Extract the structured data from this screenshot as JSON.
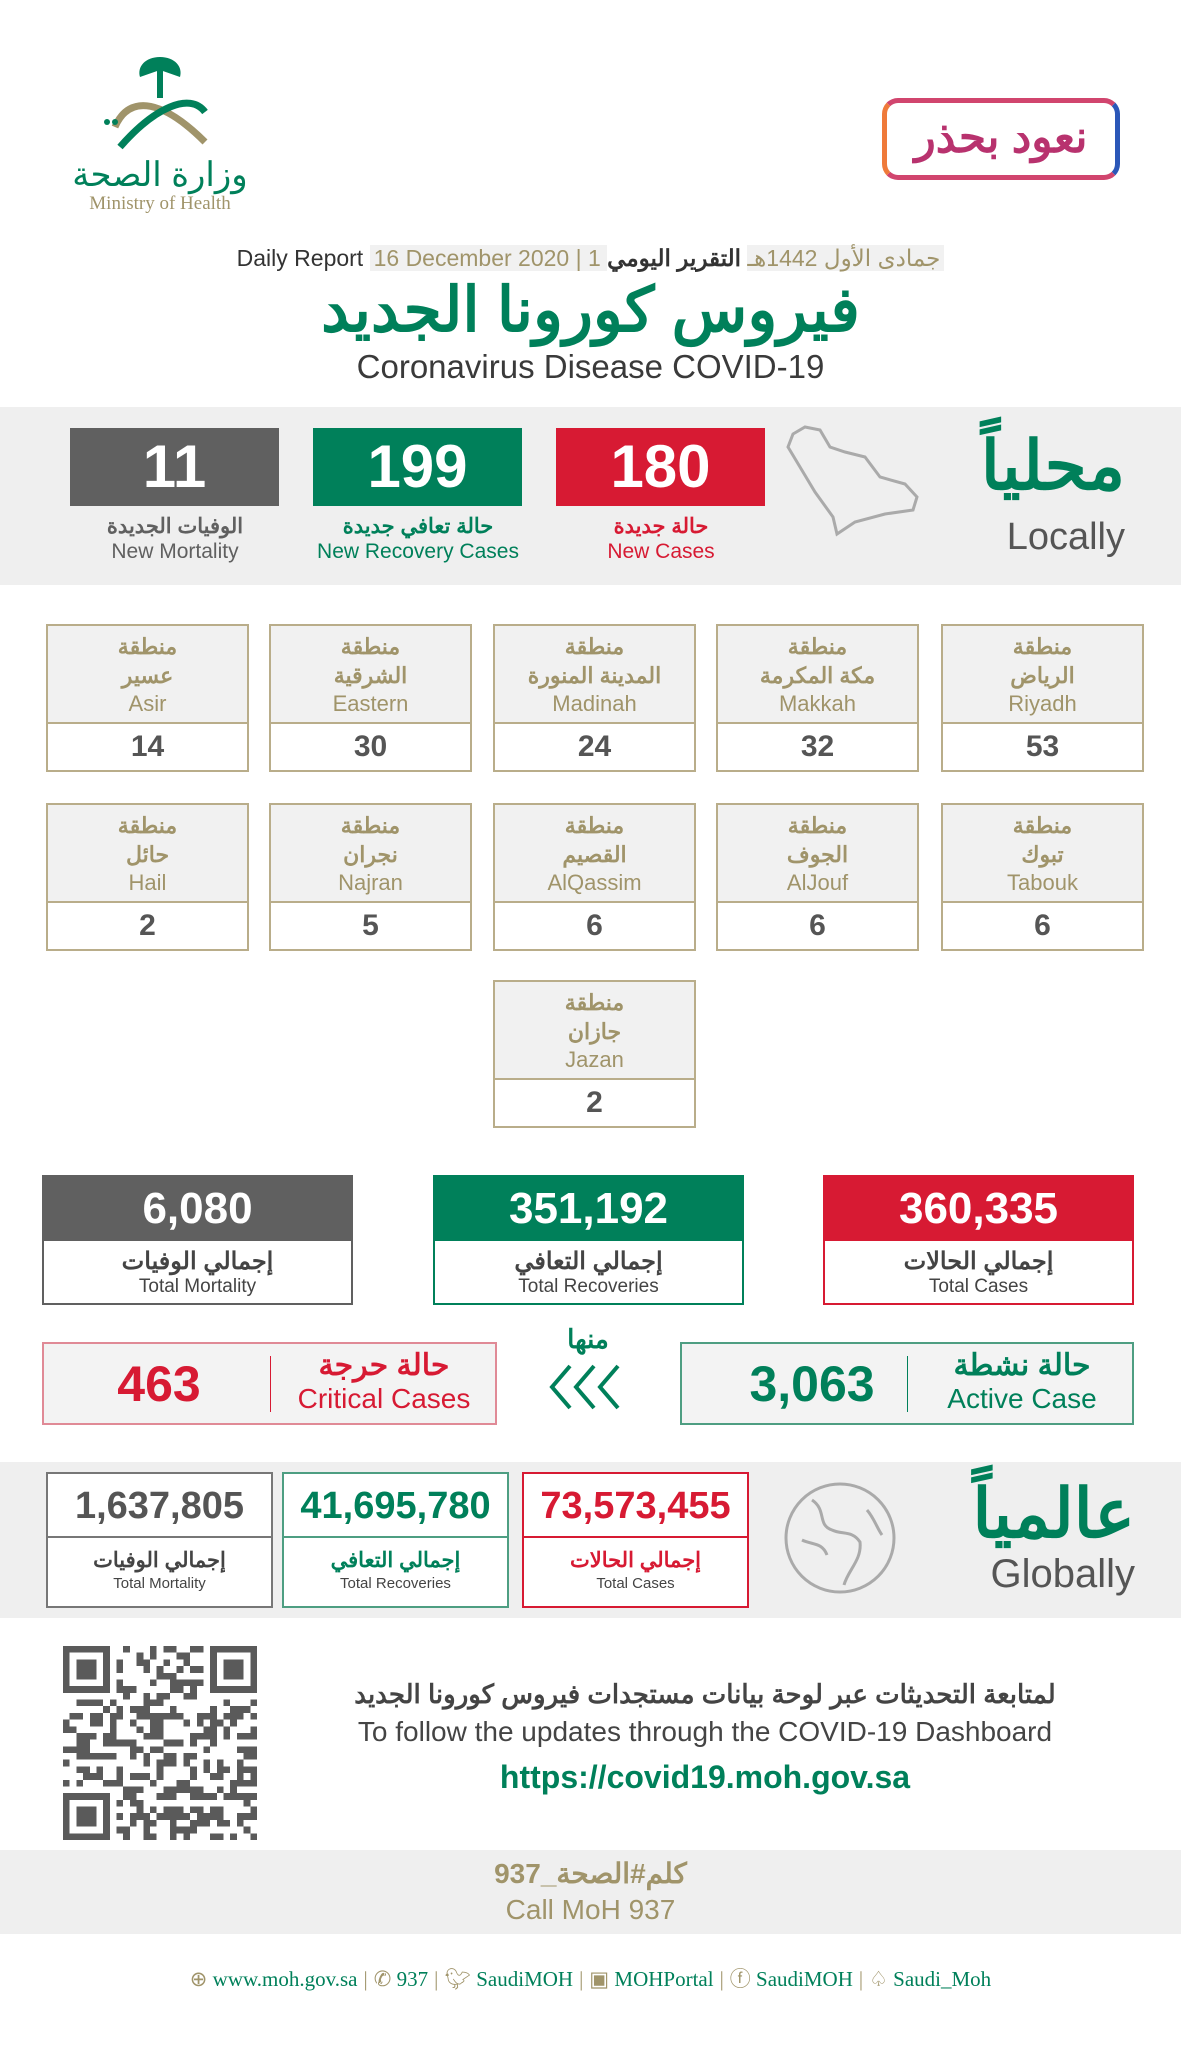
{
  "header": {
    "moh_logo": {
      "arabic": "وزارة الصحة",
      "english": "Ministry of Health"
    },
    "campaign_logo": "نعود بحذر",
    "daily_report_ar": "التقرير اليومي",
    "hijri_date": "1 جمادى الأول 1442هـ",
    "gregorian_date": "16 December 2020",
    "daily_report_en": "Daily Report",
    "title_ar": "فيروس كورونا الجديد",
    "title_en": "Coronavirus Disease COVID-19"
  },
  "locally": {
    "title_ar": "محلياً",
    "title_en": "Locally",
    "new_cases": {
      "value": "180",
      "ar": "حالة جديدة",
      "en": "New Cases"
    },
    "new_recoveries": {
      "value": "199",
      "ar": "حالة تعافي جديدة",
      "en": "New Recovery Cases"
    },
    "new_mortality": {
      "value": "11",
      "ar": "الوفيات الجديدة",
      "en": "New Mortality"
    }
  },
  "regions": [
    {
      "prefix": "منطقة",
      "ar": "الرياض",
      "en": "Riyadh",
      "value": "53"
    },
    {
      "prefix": "منطقة",
      "ar": "مكة المكرمة",
      "en": "Makkah",
      "value": "32"
    },
    {
      "prefix": "منطقة",
      "ar": "المدينة المنورة",
      "en": "Madinah",
      "value": "24"
    },
    {
      "prefix": "منطقة",
      "ar": "الشرقية",
      "en": "Eastern",
      "value": "30"
    },
    {
      "prefix": "منطقة",
      "ar": "عسير",
      "en": "Asir",
      "value": "14"
    },
    {
      "prefix": "منطقة",
      "ar": "تبوك",
      "en": "Tabouk",
      "value": "6"
    },
    {
      "prefix": "منطقة",
      "ar": "الجوف",
      "en": "AlJouf",
      "value": "6"
    },
    {
      "prefix": "منطقة",
      "ar": "القصيم",
      "en": "AlQassim",
      "value": "6"
    },
    {
      "prefix": "منطقة",
      "ar": "نجران",
      "en": "Najran",
      "value": "5"
    },
    {
      "prefix": "منطقة",
      "ar": "حائل",
      "en": "Hail",
      "value": "2"
    },
    {
      "prefix": "منطقة",
      "ar": "جازان",
      "en": "Jazan",
      "value": "2"
    }
  ],
  "totals": {
    "cases": {
      "value": "360,335",
      "ar": "إجمالي الحالات",
      "en": "Total Cases"
    },
    "recoveries": {
      "value": "351,192",
      "ar": "إجمالي التعافي",
      "en": "Total Recoveries"
    },
    "mortality": {
      "value": "6,080",
      "ar": "إجمالي الوفيات",
      "en": "Total Mortality"
    }
  },
  "of_which": "منها",
  "active": {
    "value": "3,063",
    "ar": "حالة نشطة",
    "en": "Active Case"
  },
  "critical": {
    "value": "463",
    "ar": "حالة حرجة",
    "en": "Critical Cases"
  },
  "globally": {
    "title_ar": "عالمياً",
    "title_en": "Globally",
    "cases": {
      "value": "73,573,455",
      "ar": "إجمالي الحالات",
      "en": "Total Cases"
    },
    "recoveries": {
      "value": "41,695,780",
      "ar": "إجمالي التعافي",
      "en": "Total Recoveries"
    },
    "mortality": {
      "value": "1,637,805",
      "ar": "إجمالي الوفيات",
      "en": "Total Mortality"
    }
  },
  "dashboard": {
    "text_ar": "لمتابعة التحديثات عبر لوحة بيانات مستجدات فيروس كورونا الجديد",
    "text_en": "To follow the updates through the COVID-19 Dashboard",
    "url": "https://covid19.moh.gov.sa"
  },
  "call": {
    "ar": "كلم#الصحة_937",
    "en": "Call MoH 937"
  },
  "footer": [
    {
      "icon": "globe-icon",
      "label": "www.moh.gov.sa"
    },
    {
      "icon": "phone-icon",
      "label": "937"
    },
    {
      "icon": "twitter-icon",
      "label": "SaudiMOH"
    },
    {
      "icon": "youtube-icon",
      "label": "MOHPortal"
    },
    {
      "icon": "facebook-icon",
      "label": "SaudiMOH"
    },
    {
      "icon": "snapchat-icon",
      "label": "Saudi_Moh"
    }
  ],
  "colors": {
    "red": "#d71a33",
    "green": "#00805a",
    "grey": "#606060",
    "gold": "#a0946a"
  }
}
